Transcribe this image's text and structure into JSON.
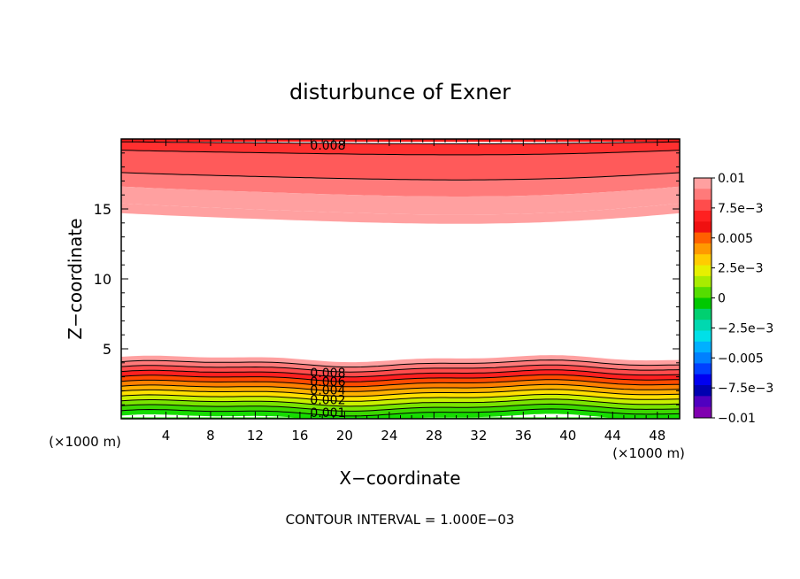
{
  "chart_data": {
    "type": "heatmap",
    "plot_kind": "filled contour",
    "title": "disturbunce of Exner",
    "xlabel": "X−coordinate",
    "ylabel": "Z−coordinate",
    "x_unit_left": "(×1000 m)",
    "x_unit_right": "(×1000 m)",
    "xlim": [
      0,
      50
    ],
    "ylim": [
      0,
      20
    ],
    "x_ticks": [
      4,
      8,
      12,
      16,
      20,
      24,
      28,
      32,
      36,
      40,
      44,
      48
    ],
    "y_ticks": [
      5,
      10,
      15
    ],
    "grid": false,
    "footer": "CONTOUR INTERVAL = 1.000E−03",
    "contour_labels": [
      "0.008",
      "0.008",
      "0.006",
      "0.004",
      "0.002",
      "0.001"
    ],
    "colorbar": {
      "position": "right",
      "range": [
        -0.01,
        0.01
      ],
      "levels": [
        -0.01,
        -0.0075,
        -0.005,
        -0.0025,
        0,
        0.0025,
        0.005,
        0.0075,
        0.01
      ],
      "tick_labels": [
        "0.01",
        "7.5e−3",
        "0.005",
        "2.5e−3",
        "0",
        "−2.5e−3",
        "−0.005",
        "−7.5e−3",
        "−0.01"
      ],
      "colors_top_to_bottom": [
        "#ffa0a0",
        "#ff7a7a",
        "#ff4c4c",
        "#ff2020",
        "#f01010",
        "#ff6000",
        "#ff9900",
        "#ffcc00",
        "#e6f000",
        "#a8ec00",
        "#55dd00",
        "#00c800",
        "#00d070",
        "#00d8b0",
        "#00e0e8",
        "#00b0ff",
        "#0080ff",
        "#0040ff",
        "#0000f0",
        "#0000b0",
        "#5000c0",
        "#8000b0"
      ]
    },
    "fill_colors_by_level": [
      {
        "level_min": 0.0,
        "level_max": 0.001,
        "color": "#16dc00"
      },
      {
        "level_min": 0.001,
        "level_max": 0.002,
        "color": "#55dd00"
      },
      {
        "level_min": 0.002,
        "level_max": 0.003,
        "color": "#b4ee00"
      },
      {
        "level_min": 0.003,
        "level_max": 0.004,
        "color": "#ffe000"
      },
      {
        "level_min": 0.004,
        "level_max": 0.005,
        "color": "#ffb000"
      },
      {
        "level_min": 0.005,
        "level_max": 0.006,
        "color": "#ff8000"
      },
      {
        "level_min": 0.006,
        "level_max": 0.007,
        "color": "#ff4000"
      },
      {
        "level_min": 0.007,
        "level_max": 0.008,
        "color": "#ff2020"
      },
      {
        "level_min": 0.008,
        "level_max": 0.009,
        "color": "#ff5050"
      },
      {
        "level_min": 0.009,
        "level_max": 0.01,
        "color": "#ff7a7a"
      },
      {
        "level_min": 0.01,
        "level_max": 0.011,
        "color": "#ffa0a0"
      }
    ],
    "regions": {
      "top_band": {
        "z_range": [
          14.0,
          20
        ],
        "description_levels": [
          0.01,
          0.009,
          0.008,
          0.007
        ]
      },
      "bottom_band": {
        "z_range": [
          0,
          4.2
        ],
        "description_levels": [
          0.001,
          0.002,
          0.004,
          0.006,
          0.008,
          0.01
        ]
      }
    }
  }
}
